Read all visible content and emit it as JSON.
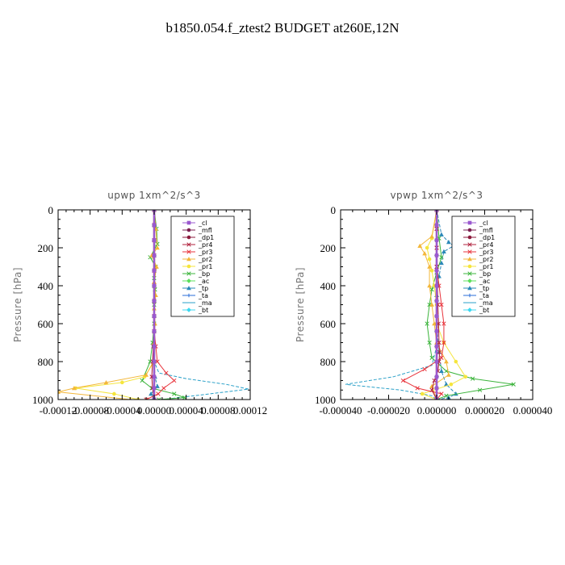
{
  "title": "b1850.054.f_ztest2  BUDGET at260E,12N",
  "chart_data": [
    {
      "type": "line",
      "title": "upwp   1xm^2/s^3",
      "ylabel": "Pressure  [hPa]",
      "ylim": [
        1000,
        0
      ],
      "xlim": [
        -0.00012,
        0.00012
      ],
      "y_ticks": [
        "0",
        "200",
        "400",
        "600",
        "800",
        "1000"
      ],
      "x_ticks": [
        "-0.00012",
        "-0.00008",
        "-0.00004",
        "0.00000",
        "0.00004",
        "0.00008",
        "0.00012"
      ],
      "legend_placement": "top-right",
      "series": [
        {
          "name": "_cl",
          "color": "#9b59d0",
          "x": [
            0,
            0,
            0,
            0,
            0,
            0,
            0,
            0,
            0,
            0,
            0,
            0,
            0,
            0
          ],
          "y": [
            0,
            80,
            160,
            240,
            320,
            400,
            480,
            560,
            640,
            720,
            800,
            880,
            940,
            1000
          ]
        },
        {
          "name": "_mfl",
          "color": "#7a1f4f",
          "x": [
            0,
            0,
            0,
            0,
            0,
            0,
            0,
            0,
            0,
            0,
            0,
            0,
            0,
            0
          ],
          "y": [
            0,
            80,
            160,
            240,
            320,
            400,
            480,
            560,
            640,
            720,
            800,
            880,
            940,
            1000
          ]
        },
        {
          "name": "_dp1",
          "color": "#8b1a3c",
          "x": [
            0,
            0,
            0,
            0,
            0,
            0,
            0,
            0,
            0,
            0,
            0,
            0,
            0,
            0
          ],
          "y": [
            0,
            80,
            160,
            240,
            320,
            400,
            480,
            560,
            640,
            720,
            800,
            880,
            940,
            1000
          ]
        },
        {
          "name": "_pr4",
          "color": "#b0203c",
          "x": [
            0,
            0,
            0,
            0,
            0,
            0,
            0,
            0,
            0,
            -1e-06,
            -2e-06,
            -3e-06,
            -2e-06,
            0
          ],
          "y": [
            0,
            80,
            160,
            240,
            320,
            400,
            480,
            560,
            640,
            720,
            800,
            880,
            940,
            1000
          ]
        },
        {
          "name": "_pr3",
          "color": "#e8343c",
          "x": [
            0,
            0,
            0,
            0,
            0,
            0,
            0,
            0,
            0,
            2e-06,
            4e-06,
            1.5e-05,
            2.5e-05,
            1.2e-05,
            5e-06,
            -1e-05
          ],
          "y": [
            0,
            80,
            160,
            240,
            320,
            400,
            480,
            560,
            640,
            720,
            800,
            860,
            900,
            940,
            970,
            1000
          ]
        },
        {
          "name": "_pr2",
          "color": "#f3b73a",
          "x": [
            0,
            2e-06,
            4e-06,
            -3e-06,
            3e-06,
            0,
            2e-06,
            0,
            1e-06,
            0,
            -1e-06,
            -1e-05,
            -6e-05,
            -0.0001,
            -0.00012,
            -3e-05
          ],
          "y": [
            0,
            100,
            200,
            240,
            300,
            380,
            450,
            520,
            600,
            700,
            800,
            870,
            910,
            940,
            960,
            1000
          ]
        },
        {
          "name": "_pr1",
          "color": "#f5e53c",
          "x": [
            0,
            0,
            0,
            0,
            0,
            0,
            0,
            0,
            0,
            0,
            0,
            -1.2e-05,
            -4e-05,
            -9.8e-05,
            -5e-05,
            -2e-05
          ],
          "y": [
            0,
            80,
            160,
            240,
            320,
            400,
            480,
            560,
            640,
            720,
            800,
            880,
            910,
            940,
            970,
            1000
          ]
        },
        {
          "name": "_bp",
          "color": "#3cb43c",
          "x": [
            0,
            3e-06,
            4e-06,
            -5e-06,
            2e-06,
            0,
            1e-06,
            0,
            0,
            -2e-06,
            -5e-06,
            -1.5e-05,
            -3e-06,
            2.5e-05,
            3.8e-05,
            6e-06
          ],
          "y": [
            0,
            100,
            180,
            250,
            300,
            360,
            420,
            500,
            600,
            700,
            800,
            900,
            940,
            970,
            990,
            1000
          ]
        },
        {
          "name": "_ac",
          "color": "#5ce05c",
          "x": [
            0,
            0,
            0,
            0,
            0,
            0,
            0,
            0,
            0,
            0,
            0,
            0,
            0,
            0
          ],
          "y": [
            0,
            80,
            160,
            240,
            320,
            400,
            480,
            560,
            640,
            720,
            800,
            880,
            940,
            1000
          ]
        },
        {
          "name": "_tp",
          "color": "#2a88b8",
          "x": [
            0,
            0,
            0,
            0,
            0,
            0,
            0,
            0,
            0,
            0,
            0,
            1e-06,
            4e-06,
            -4e-06,
            0
          ],
          "y": [
            0,
            80,
            160,
            240,
            320,
            400,
            480,
            560,
            640,
            720,
            800,
            880,
            930,
            970,
            1000
          ]
        },
        {
          "name": "_ta",
          "color": "#2a6ed8",
          "x": [
            0,
            0,
            0,
            0,
            0,
            0,
            0,
            0,
            0,
            0,
            0,
            0,
            0,
            0
          ],
          "y": [
            0,
            80,
            160,
            240,
            320,
            400,
            480,
            560,
            640,
            720,
            800,
            880,
            940,
            1000
          ]
        },
        {
          "name": "_ma",
          "color": "#2aa0c8",
          "x": [
            0,
            0,
            0,
            0,
            0,
            0,
            0,
            0,
            0,
            0,
            0,
            6e-06,
            4e-05,
            9e-05,
            0.000118,
            6e-05,
            1e-05
          ],
          "y": [
            0,
            80,
            160,
            240,
            320,
            400,
            480,
            560,
            640,
            720,
            800,
            860,
            890,
            920,
            945,
            975,
            1000
          ]
        },
        {
          "name": "_bt",
          "color": "#3cd8f0",
          "x": [
            0,
            0,
            0,
            0,
            0,
            0,
            0,
            0,
            0,
            0,
            0,
            0,
            0,
            0
          ],
          "y": [
            0,
            80,
            160,
            240,
            320,
            400,
            480,
            560,
            640,
            720,
            800,
            880,
            940,
            1000
          ]
        }
      ]
    },
    {
      "type": "line",
      "title": "vpwp   1xm^2/s^3",
      "ylabel": "Pressure  [hPa]",
      "ylim": [
        1000,
        0
      ],
      "xlim": [
        -4e-05,
        4e-05
      ],
      "y_ticks": [
        "0",
        "200",
        "400",
        "600",
        "800",
        "1000"
      ],
      "x_ticks": [
        "-0.000040",
        "-0.000020",
        "0.000000",
        "0.000020",
        "0.000040"
      ],
      "legend_placement": "top-right",
      "series": [
        {
          "name": "_cl",
          "color": "#9b59d0",
          "x": [
            0,
            0,
            0,
            0,
            0,
            0,
            0,
            0,
            0,
            0,
            0,
            0,
            0,
            0
          ],
          "y": [
            0,
            80,
            160,
            240,
            320,
            400,
            480,
            560,
            640,
            720,
            800,
            880,
            940,
            1000
          ]
        },
        {
          "name": "_mfl",
          "color": "#7a1f4f",
          "x": [
            0,
            0,
            0,
            0,
            0,
            0,
            0,
            0,
            0,
            0,
            0,
            0,
            0,
            0
          ],
          "y": [
            0,
            80,
            160,
            240,
            320,
            400,
            480,
            560,
            640,
            720,
            800,
            880,
            940,
            1000
          ]
        },
        {
          "name": "_dp1",
          "color": "#8b1a3c",
          "x": [
            0,
            0,
            0,
            0,
            0,
            0,
            0,
            0,
            0,
            0,
            0,
            0,
            0,
            0
          ],
          "y": [
            0,
            80,
            160,
            240,
            320,
            400,
            480,
            560,
            640,
            720,
            800,
            880,
            940,
            1000
          ]
        },
        {
          "name": "_pr4",
          "color": "#b0203c",
          "x": [
            0,
            0,
            0,
            0,
            3e-07,
            5e-07,
            8e-07,
            1e-06,
            1.2e-06,
            1e-06,
            5e-07,
            -1e-06,
            -2e-06,
            0
          ],
          "y": [
            0,
            100,
            200,
            300,
            400,
            500,
            600,
            700,
            750,
            800,
            850,
            900,
            950,
            1000
          ]
        },
        {
          "name": "_pr3",
          "color": "#e8343c",
          "x": [
            0,
            0,
            0,
            0,
            1e-06,
            2e-06,
            3e-06,
            3e-06,
            2e-06,
            -5e-06,
            -1.4e-05,
            -8e-06,
            2e-06,
            0
          ],
          "y": [
            0,
            100,
            200,
            300,
            400,
            500,
            600,
            700,
            780,
            840,
            900,
            940,
            970,
            1000
          ]
        },
        {
          "name": "_pr2",
          "color": "#f3b73a",
          "x": [
            0,
            -2e-06,
            -7e-06,
            -5e-06,
            -3e-06,
            -3e-06,
            -2e-06,
            -1e-06,
            0,
            4e-06,
            5e-06,
            -2e-06,
            0
          ],
          "y": [
            0,
            140,
            190,
            230,
            300,
            400,
            500,
            600,
            700,
            800,
            870,
            930,
            1000
          ]
        },
        {
          "name": "_pr1",
          "color": "#f5e53c",
          "x": [
            0,
            -2e-06,
            -4e-06,
            -3e-06,
            -2e-06,
            -1e-06,
            0,
            0,
            3e-06,
            8e-06,
            1.2e-05,
            6e-06,
            -6e-06,
            0
          ],
          "y": [
            0,
            150,
            200,
            260,
            320,
            400,
            500,
            600,
            700,
            800,
            880,
            920,
            970,
            1000
          ]
        },
        {
          "name": "_bp",
          "color": "#3cb43c",
          "x": [
            0,
            1e-06,
            2e-06,
            0,
            -2e-06,
            -3e-06,
            -4e-06,
            -3e-06,
            -2e-06,
            4e-06,
            1.5e-05,
            3.2e-05,
            1.8e-05,
            4e-06,
            0
          ],
          "y": [
            0,
            150,
            250,
            330,
            420,
            500,
            600,
            700,
            780,
            850,
            890,
            920,
            950,
            980,
            1000
          ]
        },
        {
          "name": "_ac",
          "color": "#5ce05c",
          "x": [
            0,
            0,
            0,
            0,
            0,
            0,
            0,
            0,
            0,
            0,
            0,
            0,
            0,
            0
          ],
          "y": [
            0,
            80,
            160,
            240,
            320,
            400,
            480,
            560,
            640,
            720,
            800,
            880,
            940,
            1000
          ]
        },
        {
          "name": "_tp",
          "color": "#2a88b8",
          "x": [
            0,
            2e-06,
            5e-06,
            7e-06,
            3e-06,
            2e-06,
            1e-06,
            0,
            0,
            1e-06,
            2e-06,
            4e-06,
            8e-06,
            5e-06,
            0
          ],
          "y": [
            0,
            130,
            170,
            190,
            220,
            280,
            350,
            450,
            600,
            750,
            850,
            920,
            970,
            990,
            1000
          ]
        },
        {
          "name": "_ta",
          "color": "#2a6ed8",
          "x": [
            0,
            0,
            0,
            0,
            0,
            0,
            0,
            0,
            0,
            0,
            0,
            0,
            0,
            0
          ],
          "y": [
            0,
            80,
            160,
            240,
            320,
            400,
            480,
            560,
            640,
            720,
            800,
            880,
            940,
            1000
          ]
        },
        {
          "name": "_ma",
          "color": "#2aa0c8",
          "x": [
            0,
            0,
            0,
            0,
            0,
            0,
            0,
            0,
            0,
            0,
            -2e-06,
            -1.8e-05,
            -3.8e-05,
            -1.5e-05,
            -2e-06,
            0
          ],
          "y": [
            0,
            80,
            160,
            240,
            320,
            400,
            480,
            560,
            640,
            720,
            820,
            880,
            920,
            950,
            980,
            1000
          ]
        },
        {
          "name": "_bt",
          "color": "#3cd8f0",
          "x": [
            0,
            0,
            0,
            0,
            0,
            0,
            0,
            0,
            0,
            0,
            0,
            0,
            0,
            0
          ],
          "y": [
            0,
            80,
            160,
            240,
            320,
            400,
            480,
            560,
            640,
            720,
            800,
            880,
            940,
            1000
          ]
        }
      ]
    }
  ]
}
